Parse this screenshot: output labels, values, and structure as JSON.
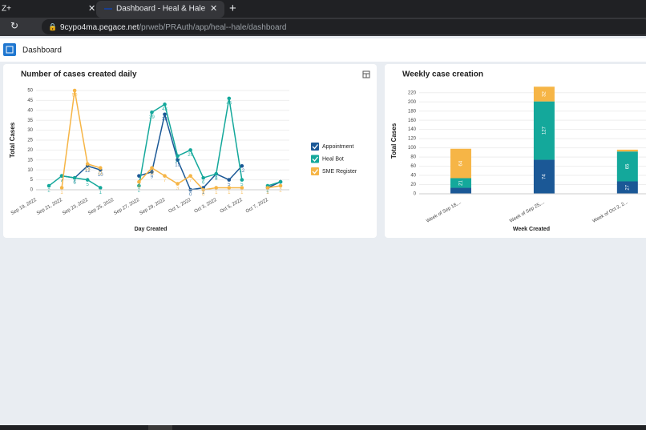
{
  "browser": {
    "tabs": [
      "Z+",
      "Dashboard - Heal & Hale"
    ],
    "url_host": "9cypo4ma.pegace.net",
    "url_path": "/prweb/PRAuth/app/heal--hale/dashboard"
  },
  "header": {
    "title": "Dashboard"
  },
  "chart_data": [
    {
      "type": "line",
      "title": "Number of cases created daily",
      "xlabel": "Day Created",
      "ylabel": "Total Cases",
      "categories": [
        "Sep 19, 2022",
        null,
        "Sep 21, 2022",
        null,
        "Sep 23, 2022",
        null,
        "Sep 25, 2022",
        null,
        "Sep 27, 2022",
        null,
        "Sep 29, 2022",
        null,
        "Oct 1, 2022",
        null,
        "Oct 3, 2022",
        null,
        "Oct 5, 2022",
        null,
        "Oct 7, 2022",
        null
      ],
      "ylim": [
        0,
        50
      ],
      "yticks": [
        0,
        5,
        10,
        15,
        20,
        25,
        30,
        35,
        40,
        45,
        50
      ],
      "grid": true,
      "legend": "right",
      "series": [
        {
          "name": "Appointment",
          "color": "#1b5896",
          "values": [
            null,
            null,
            7,
            6,
            12,
            10,
            null,
            null,
            7,
            9,
            38,
            15,
            0,
            1,
            8,
            5,
            12,
            null,
            1,
            4
          ]
        },
        {
          "name": "Heal Bot",
          "color": "#14a89b",
          "values": [
            null,
            2,
            7,
            6,
            5,
            1,
            null,
            null,
            2,
            39,
            43,
            17,
            20,
            6,
            8,
            46,
            5,
            null,
            2,
            4
          ]
        },
        {
          "name": "SME Register",
          "color": "#f6b546",
          "values": [
            null,
            null,
            1,
            50,
            13,
            11,
            null,
            null,
            4,
            11,
            7,
            3,
            7,
            0,
            1,
            1,
            1,
            null,
            1,
            2
          ]
        }
      ]
    },
    {
      "type": "bar",
      "stacked": true,
      "title": "Weekly case creation",
      "xlabel": "Week Created",
      "ylabel": "Total Cases",
      "categories": [
        "Week of Sep 18,...",
        "Week of Sep 25,...",
        "Week of Oct 2, 2..."
      ],
      "ylim": [
        0,
        230
      ],
      "yticks": [
        0,
        20,
        40,
        60,
        80,
        100,
        120,
        140,
        160,
        180,
        200,
        220
      ],
      "grid": true,
      "series": [
        {
          "name": "Appointment",
          "color": "#1b5896",
          "values": [
            13,
            74,
            27
          ]
        },
        {
          "name": "Heal Bot",
          "color": "#14a89b",
          "values": [
            21,
            127,
            65
          ]
        },
        {
          "name": "SME Register",
          "color": "#f6b546",
          "values": [
            64,
            32,
            4
          ]
        }
      ]
    }
  ]
}
